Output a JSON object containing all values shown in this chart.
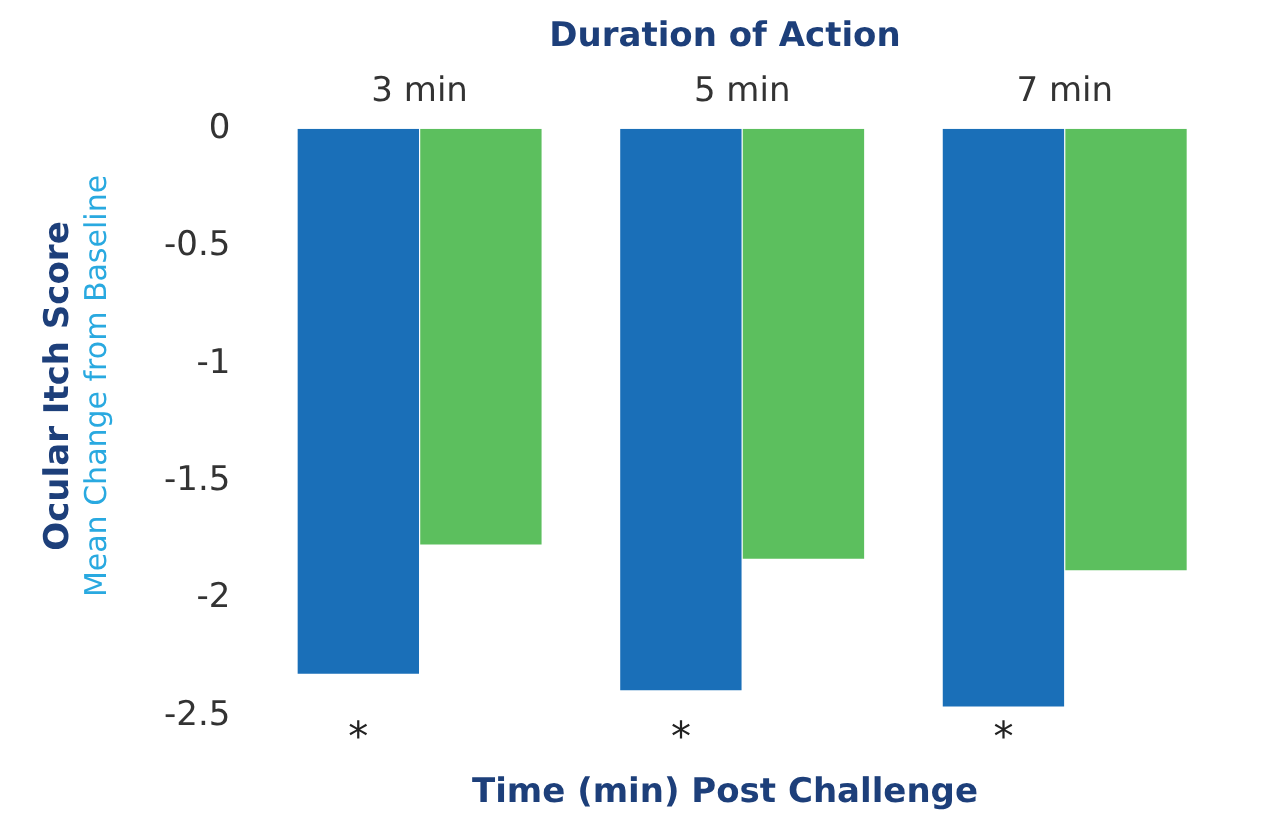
{
  "chart_data": {
    "type": "bar",
    "title": "Duration of Action",
    "xlabel": "Time (min) Post Challenge",
    "ylabel": "Ocular Itch Score",
    "categories": [
      "3 min",
      "5 min",
      "7 min"
    ],
    "series": [
      {
        "color": "#1a6fb8",
        "values": [
          -2.32,
          -2.39,
          -2.46
        ]
      },
      {
        "color": "#5cbf5e",
        "values": [
          -1.77,
          -1.83,
          -1.88
        ]
      }
    ],
    "ylim": [
      -2.5,
      0
    ],
    "yticks": [
      0,
      -0.5,
      -1,
      -1.5,
      -2,
      -2.5
    ],
    "grid": false,
    "legend": false,
    "annotations": [
      "Mean Change from Baseline",
      "*",
      "*",
      "*"
    ]
  }
}
